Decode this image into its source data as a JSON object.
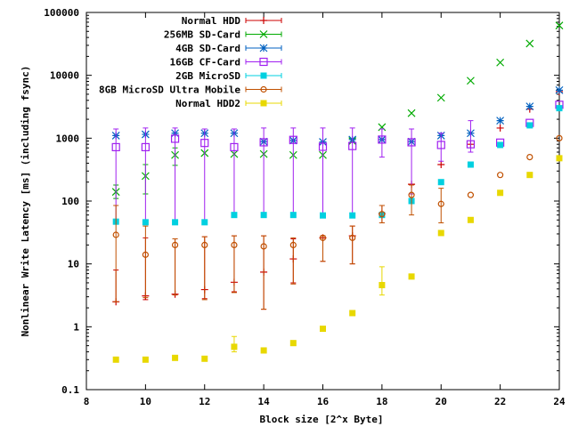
{
  "chart_data": {
    "type": "scatter",
    "title": "",
    "xlabel": "Block size [2^x Byte]",
    "ylabel": "Nonlinear Write Latency [ms] (including fsync)",
    "xlim": [
      8,
      24
    ],
    "ylim": [
      0.1,
      100000
    ],
    "y_scale": "log",
    "grid": false,
    "legend_position": "top-center",
    "x_ticks": [
      8,
      10,
      12,
      14,
      16,
      18,
      20,
      22,
      24
    ],
    "y_ticks": [
      0.1,
      1,
      10,
      100,
      1000,
      10000,
      100000
    ],
    "x_tick_labels": [
      "8",
      "10",
      "12",
      "14",
      "16",
      "18",
      "20",
      "22",
      "24"
    ],
    "y_tick_labels": [
      "0.1",
      "1",
      "10",
      "100",
      "1000",
      "10000",
      "100000"
    ],
    "series": [
      {
        "name": "Normal HDD",
        "color": "#cc0000",
        "marker": "plus",
        "x": [
          9,
          10,
          11,
          12,
          13,
          14,
          15,
          16,
          17,
          18,
          19,
          20,
          21,
          22,
          23,
          24
        ],
        "y": [
          2.5,
          3.1,
          3.3,
          3.9,
          5.1,
          7.4,
          12,
          26,
          28,
          63,
          185,
          380,
          800,
          1450,
          2900,
          5500
        ],
        "err_low": [
          2.5,
          2.7,
          3.3,
          2.8,
          3.6,
          1.9,
          5,
          11,
          10,
          45,
          null,
          null,
          null,
          null,
          null,
          null
        ],
        "err_high": [
          8,
          26,
          25,
          27,
          28,
          28,
          25,
          28,
          40,
          85,
          null,
          null,
          null,
          null,
          null,
          null
        ]
      },
      {
        "name": "256MB SD-Card",
        "color": "#00aa00",
        "marker": "x",
        "x": [
          9,
          10,
          11,
          12,
          13,
          14,
          15,
          16,
          17,
          18,
          19,
          20,
          21,
          22,
          23,
          24
        ],
        "y": [
          140,
          250,
          540,
          580,
          560,
          560,
          540,
          540,
          900,
          1500,
          2500,
          4400,
          8200,
          16000,
          32000,
          62000
        ],
        "err_low": [
          110,
          130,
          370,
          null,
          null,
          null,
          null,
          null,
          null,
          null,
          null,
          null,
          null,
          null,
          null,
          null
        ],
        "err_high": [
          180,
          380,
          700,
          null,
          null,
          null,
          null,
          null,
          null,
          null,
          null,
          null,
          null,
          null,
          null,
          null
        ]
      },
      {
        "name": "4GB SD-Card",
        "color": "#0060c0",
        "marker": "asterisk",
        "x": [
          9,
          10,
          11,
          12,
          13,
          14,
          15,
          16,
          17,
          18,
          19,
          20,
          21,
          22,
          23,
          24
        ],
        "y": [
          1100,
          1150,
          1200,
          1200,
          1200,
          880,
          920,
          870,
          950,
          950,
          880,
          1100,
          1200,
          1900,
          3200,
          5800
        ],
        "err_low": [
          null,
          null,
          null,
          null,
          null,
          null,
          null,
          null,
          null,
          null,
          null,
          null,
          null,
          null,
          null,
          null
        ],
        "err_high": [
          null,
          null,
          null,
          null,
          null,
          null,
          null,
          null,
          null,
          null,
          null,
          null,
          null,
          null,
          null,
          null
        ]
      },
      {
        "name": "16GB CF-Card",
        "color": "#a020f0",
        "marker": "open-square",
        "x": [
          9,
          10,
          11,
          12,
          13,
          14,
          15,
          16,
          17,
          18,
          19,
          20,
          21,
          22,
          23,
          24
        ],
        "y": [
          720,
          720,
          980,
          840,
          720,
          860,
          940,
          730,
          750,
          950,
          860,
          780,
          800,
          850,
          1750,
          3400
        ],
        "err_low": [
          45,
          48,
          48,
          45,
          60,
          60,
          60,
          58,
          58,
          500,
          130,
          430,
          600,
          null,
          null,
          null
        ],
        "err_high": [
          1400,
          1450,
          1450,
          1400,
          1400,
          1450,
          1450,
          1450,
          1450,
          1400,
          1400,
          1200,
          1900,
          null,
          null,
          null
        ]
      },
      {
        "name": "2GB MicroSD",
        "color": "#00d0e0",
        "marker": "filled-square",
        "x": [
          9,
          10,
          11,
          12,
          13,
          14,
          15,
          16,
          17,
          18,
          19,
          20,
          21,
          22,
          23,
          24
        ],
        "y": [
          47,
          46,
          46,
          46,
          60,
          60,
          60,
          59,
          59,
          60,
          100,
          200,
          380,
          780,
          1600,
          3000
        ],
        "err_low": [
          null,
          null,
          null,
          null,
          null,
          null,
          null,
          null,
          null,
          null,
          null,
          null,
          null,
          null,
          null,
          null
        ],
        "err_high": [
          null,
          null,
          null,
          null,
          null,
          null,
          null,
          null,
          null,
          null,
          null,
          null,
          null,
          null,
          null,
          null
        ]
      },
      {
        "name": "8GB MicroSD Ultra Mobile",
        "color": "#c05000",
        "marker": "open-circle",
        "x": [
          9,
          10,
          11,
          12,
          13,
          14,
          15,
          16,
          17,
          18,
          19,
          20,
          21,
          22,
          23,
          24
        ],
        "y": [
          29,
          14,
          20,
          20,
          20,
          19,
          20,
          26,
          26,
          62,
          125,
          90,
          125,
          260,
          500,
          1000
        ],
        "err_low": [
          2.5,
          2.9,
          3.2,
          2.7,
          3.5,
          1.9,
          4.8,
          11,
          10,
          45,
          60,
          45,
          null,
          null,
          null,
          null
        ],
        "err_high": [
          85,
          40,
          25,
          27,
          28,
          28,
          26,
          28,
          40,
          85,
          180,
          160,
          null,
          null,
          null,
          null
        ]
      },
      {
        "name": "Normal HDD2",
        "color": "#e8d800",
        "marker": "filled-square",
        "x": [
          9,
          10,
          11,
          12,
          13,
          14,
          15,
          16,
          17,
          18,
          19,
          20,
          21,
          22,
          23,
          24
        ],
        "y": [
          0.3,
          0.3,
          0.32,
          0.31,
          0.48,
          0.42,
          0.55,
          0.93,
          1.65,
          4.6,
          6.3,
          31,
          50,
          135,
          260,
          480
        ],
        "err_low": [
          null,
          null,
          null,
          null,
          0.4,
          null,
          null,
          null,
          null,
          3.2,
          null,
          null,
          null,
          null,
          null,
          null
        ],
        "err_high": [
          null,
          null,
          null,
          null,
          0.7,
          null,
          null,
          null,
          null,
          9,
          null,
          null,
          null,
          null,
          null,
          null
        ]
      }
    ]
  }
}
